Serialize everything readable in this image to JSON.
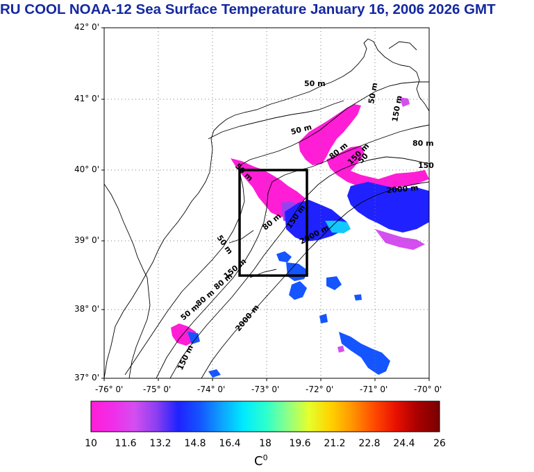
{
  "title": "RU COOL  NOAA-12 Sea Surface Temperature January 16, 2006 2026 GMT",
  "map": {
    "lat_labels": [
      "42° 0'",
      "41° 0'",
      "40° 0'",
      "39° 0'",
      "38° 0'",
      "37° 0'"
    ],
    "lon_labels": [
      "-76° 0'",
      "-75° 0'",
      "-74° 0'",
      "-73° 0'",
      "-72° 0'",
      "-71° 0'",
      "-70° 0'"
    ],
    "lat_range": [
      37,
      42
    ],
    "lon_range": [
      -76,
      -70
    ],
    "region_box": {
      "lon_min": -73.45,
      "lon_max": -72.35,
      "lat_min": 38.5,
      "lat_max": 40.0
    },
    "contour_labels": [
      "50 m",
      "50 m",
      "80 m",
      "150 m",
      "50 m",
      "80 m",
      "150 m",
      "2000 m",
      "50 m",
      "80 m",
      "150 m",
      "2000 m",
      "50 m",
      "80 m",
      "150 m",
      "2000 m",
      "50 m",
      "150 m",
      "80 m",
      "150",
      "50"
    ]
  },
  "colorbar": {
    "ticks": [
      "10",
      "11.6",
      "13.2",
      "14.8",
      "16.4",
      "18",
      "19.6",
      "21.2",
      "22.8",
      "24.4",
      "26"
    ],
    "unit": "C",
    "unit_sup": "0",
    "colors": [
      "#ff1dd6",
      "#f02ee8",
      "#d44ef0",
      "#8c3ff0",
      "#1f22ff",
      "#1455ff",
      "#0ea2ff",
      "#00eaff",
      "#2affd0",
      "#8aff8a",
      "#e5ff2b",
      "#ffd200",
      "#ff9500",
      "#ff4a00",
      "#e81000",
      "#a80000",
      "#7a0000"
    ]
  }
}
